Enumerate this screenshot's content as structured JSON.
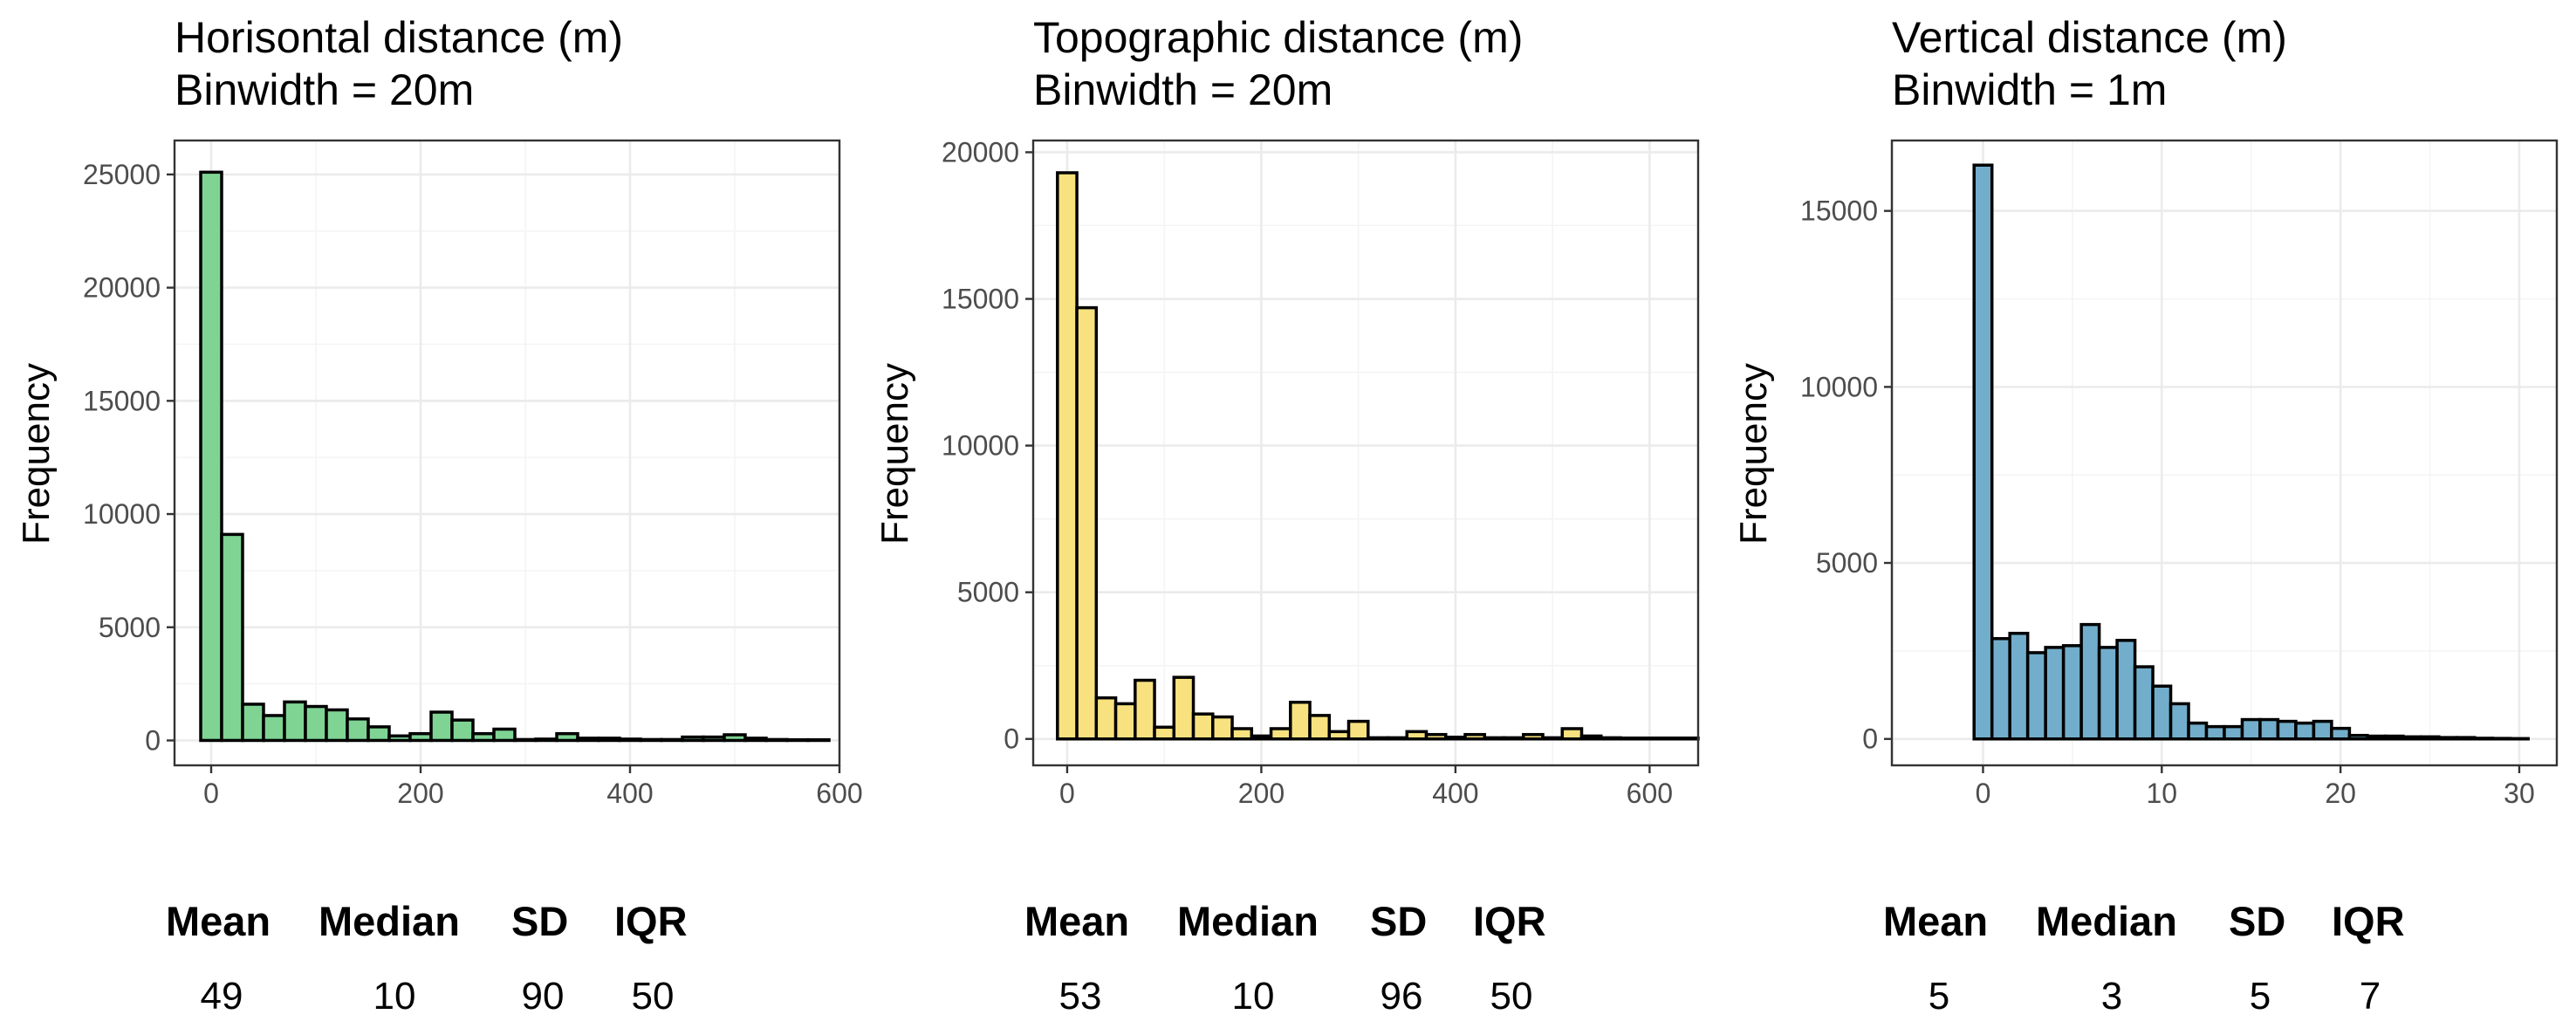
{
  "chart_data": [
    {
      "type": "bar",
      "title_line1": "Horisontal distance (m)",
      "title_line2": "Binwidth = 20m",
      "xlabel": "",
      "ylabel": "Frequency",
      "color": "#7fd494",
      "binwidth": 20,
      "xlim": [
        -35,
        600
      ],
      "ylim": [
        -1100,
        26500
      ],
      "x_ticks": [
        0,
        200,
        400,
        600
      ],
      "y_ticks": [
        0,
        5000,
        10000,
        15000,
        20000,
        25000
      ],
      "y_tick_labels": [
        "0",
        "5000",
        "10000",
        "15000",
        "20000",
        "25000"
      ],
      "bins_start": -30,
      "values": [
        0,
        25100,
        9100,
        1600,
        1100,
        1700,
        1500,
        1350,
        950,
        600,
        200,
        300,
        1250,
        900,
        300,
        500,
        40,
        60,
        300,
        100,
        100,
        60,
        40,
        40,
        150,
        150,
        250,
        100,
        40,
        30,
        30
      ],
      "stats": {
        "headers": [
          "Mean",
          "Median",
          "SD",
          "IQR"
        ],
        "values": [
          "49",
          "10",
          "90",
          "50"
        ]
      }
    },
    {
      "type": "bar",
      "title_line1": "Topographic distance (m)",
      "title_line2": "Binwidth = 20m",
      "xlabel": "",
      "ylabel": "Frequency",
      "color": "#f8e27f",
      "binwidth": 20,
      "xlim": [
        -35,
        650
      ],
      "ylim": [
        -900,
        20400
      ],
      "x_ticks": [
        0,
        200,
        400,
        600
      ],
      "y_ticks": [
        0,
        5000,
        10000,
        15000,
        20000
      ],
      "y_tick_labels": [
        "0",
        "5000",
        "10000",
        "15000",
        "20000"
      ],
      "bins_start": -30,
      "values": [
        0,
        19300,
        14700,
        1400,
        1200,
        2000,
        400,
        2100,
        850,
        750,
        350,
        100,
        350,
        1250,
        800,
        250,
        600,
        40,
        40,
        250,
        150,
        60,
        150,
        40,
        40,
        150,
        40,
        350,
        100,
        40,
        30,
        30,
        30,
        30
      ],
      "stats": {
        "headers": [
          "Mean",
          "Median",
          "SD",
          "IQR"
        ],
        "values": [
          "53",
          "10",
          "96",
          "50"
        ]
      }
    },
    {
      "type": "bar",
      "title_line1": "Vertical distance (m)",
      "title_line2": "Binwidth = 1m",
      "xlabel": "",
      "ylabel": "Frequency",
      "color": "#72aecb",
      "binwidth": 1,
      "xlim": [
        -5.1,
        32.1
      ],
      "ylim": [
        -750,
        17000
      ],
      "x_ticks": [
        0,
        10,
        20,
        30
      ],
      "y_ticks": [
        0,
        5000,
        10000,
        15000
      ],
      "y_tick_labels": [
        "0",
        "5000",
        "10000",
        "15000"
      ],
      "bins_start": -4.5,
      "values": [
        0,
        0,
        0,
        0,
        16300,
        2850,
        3000,
        2450,
        2600,
        2650,
        3250,
        2600,
        2800,
        2050,
        1500,
        1000,
        450,
        350,
        350,
        550,
        550,
        500,
        450,
        500,
        300,
        100,
        80,
        80,
        60,
        60,
        40,
        40,
        20,
        15,
        10
      ],
      "stats": {
        "headers": [
          "Mean",
          "Median",
          "SD",
          "IQR"
        ],
        "values": [
          "5",
          "3",
          "5",
          "7"
        ]
      }
    }
  ]
}
